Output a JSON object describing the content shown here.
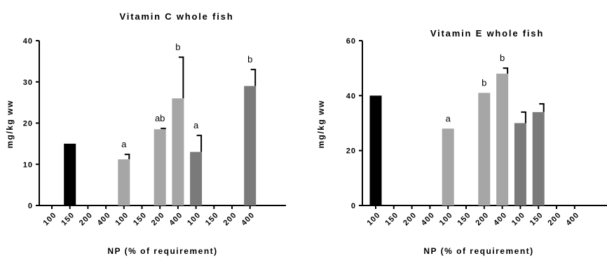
{
  "chart_data": [
    {
      "type": "bar",
      "title": "Vitamin C whole fish",
      "xlabel": "NP (% of requirement)",
      "ylabel": "mg/kg ww",
      "ylim": [
        0,
        40
      ],
      "yticks": [
        0,
        10,
        20,
        30,
        40
      ],
      "categories": [
        "100",
        "150",
        "200",
        "400",
        "100",
        "150",
        "200",
        "400",
        "100",
        "150",
        "200",
        "400"
      ],
      "groups": [
        {
          "color": "#000000",
          "categories": [
            "100",
            "150",
            "200",
            "400"
          ]
        },
        {
          "color": "#a6a6a6",
          "categories": [
            "100",
            "150",
            "200",
            "400"
          ]
        },
        {
          "color": "#7a7a7a",
          "categories": [
            "100",
            "150",
            "200",
            "400"
          ]
        }
      ],
      "values": [
        null,
        15,
        null,
        null,
        11.2,
        null,
        18.5,
        26,
        13,
        null,
        null,
        29
      ],
      "errors": [
        null,
        0,
        null,
        null,
        1.2,
        null,
        0.2,
        10,
        4,
        null,
        null,
        4
      ],
      "annotations": [
        null,
        null,
        null,
        null,
        "a",
        null,
        "ab",
        "b",
        "a",
        null,
        null,
        "b"
      ]
    },
    {
      "type": "bar",
      "title": "Vitamin E whole fish",
      "xlabel": "NP (% of requirement)",
      "ylabel": "mg/kg ww",
      "ylim": [
        0,
        60
      ],
      "yticks": [
        0,
        20,
        40,
        60
      ],
      "categories": [
        "100",
        "150",
        "200",
        "400",
        "100",
        "150",
        "200",
        "400",
        "100",
        "150",
        "200",
        "400"
      ],
      "groups": [
        {
          "color": "#000000",
          "categories": [
            "100",
            "150",
            "200",
            "400"
          ]
        },
        {
          "color": "#a6a6a6",
          "categories": [
            "100",
            "150",
            "200",
            "400"
          ]
        },
        {
          "color": "#7a7a7a",
          "categories": [
            "100",
            "150",
            "200",
            "400"
          ]
        }
      ],
      "values": [
        40,
        null,
        null,
        null,
        28,
        null,
        41,
        48,
        30,
        34,
        null,
        null
      ],
      "errors": [
        0,
        null,
        null,
        null,
        0,
        null,
        0,
        2,
        4,
        3,
        null,
        null
      ],
      "annotations": [
        null,
        null,
        null,
        null,
        "a",
        null,
        "b",
        "b",
        null,
        null,
        null,
        null
      ]
    }
  ]
}
